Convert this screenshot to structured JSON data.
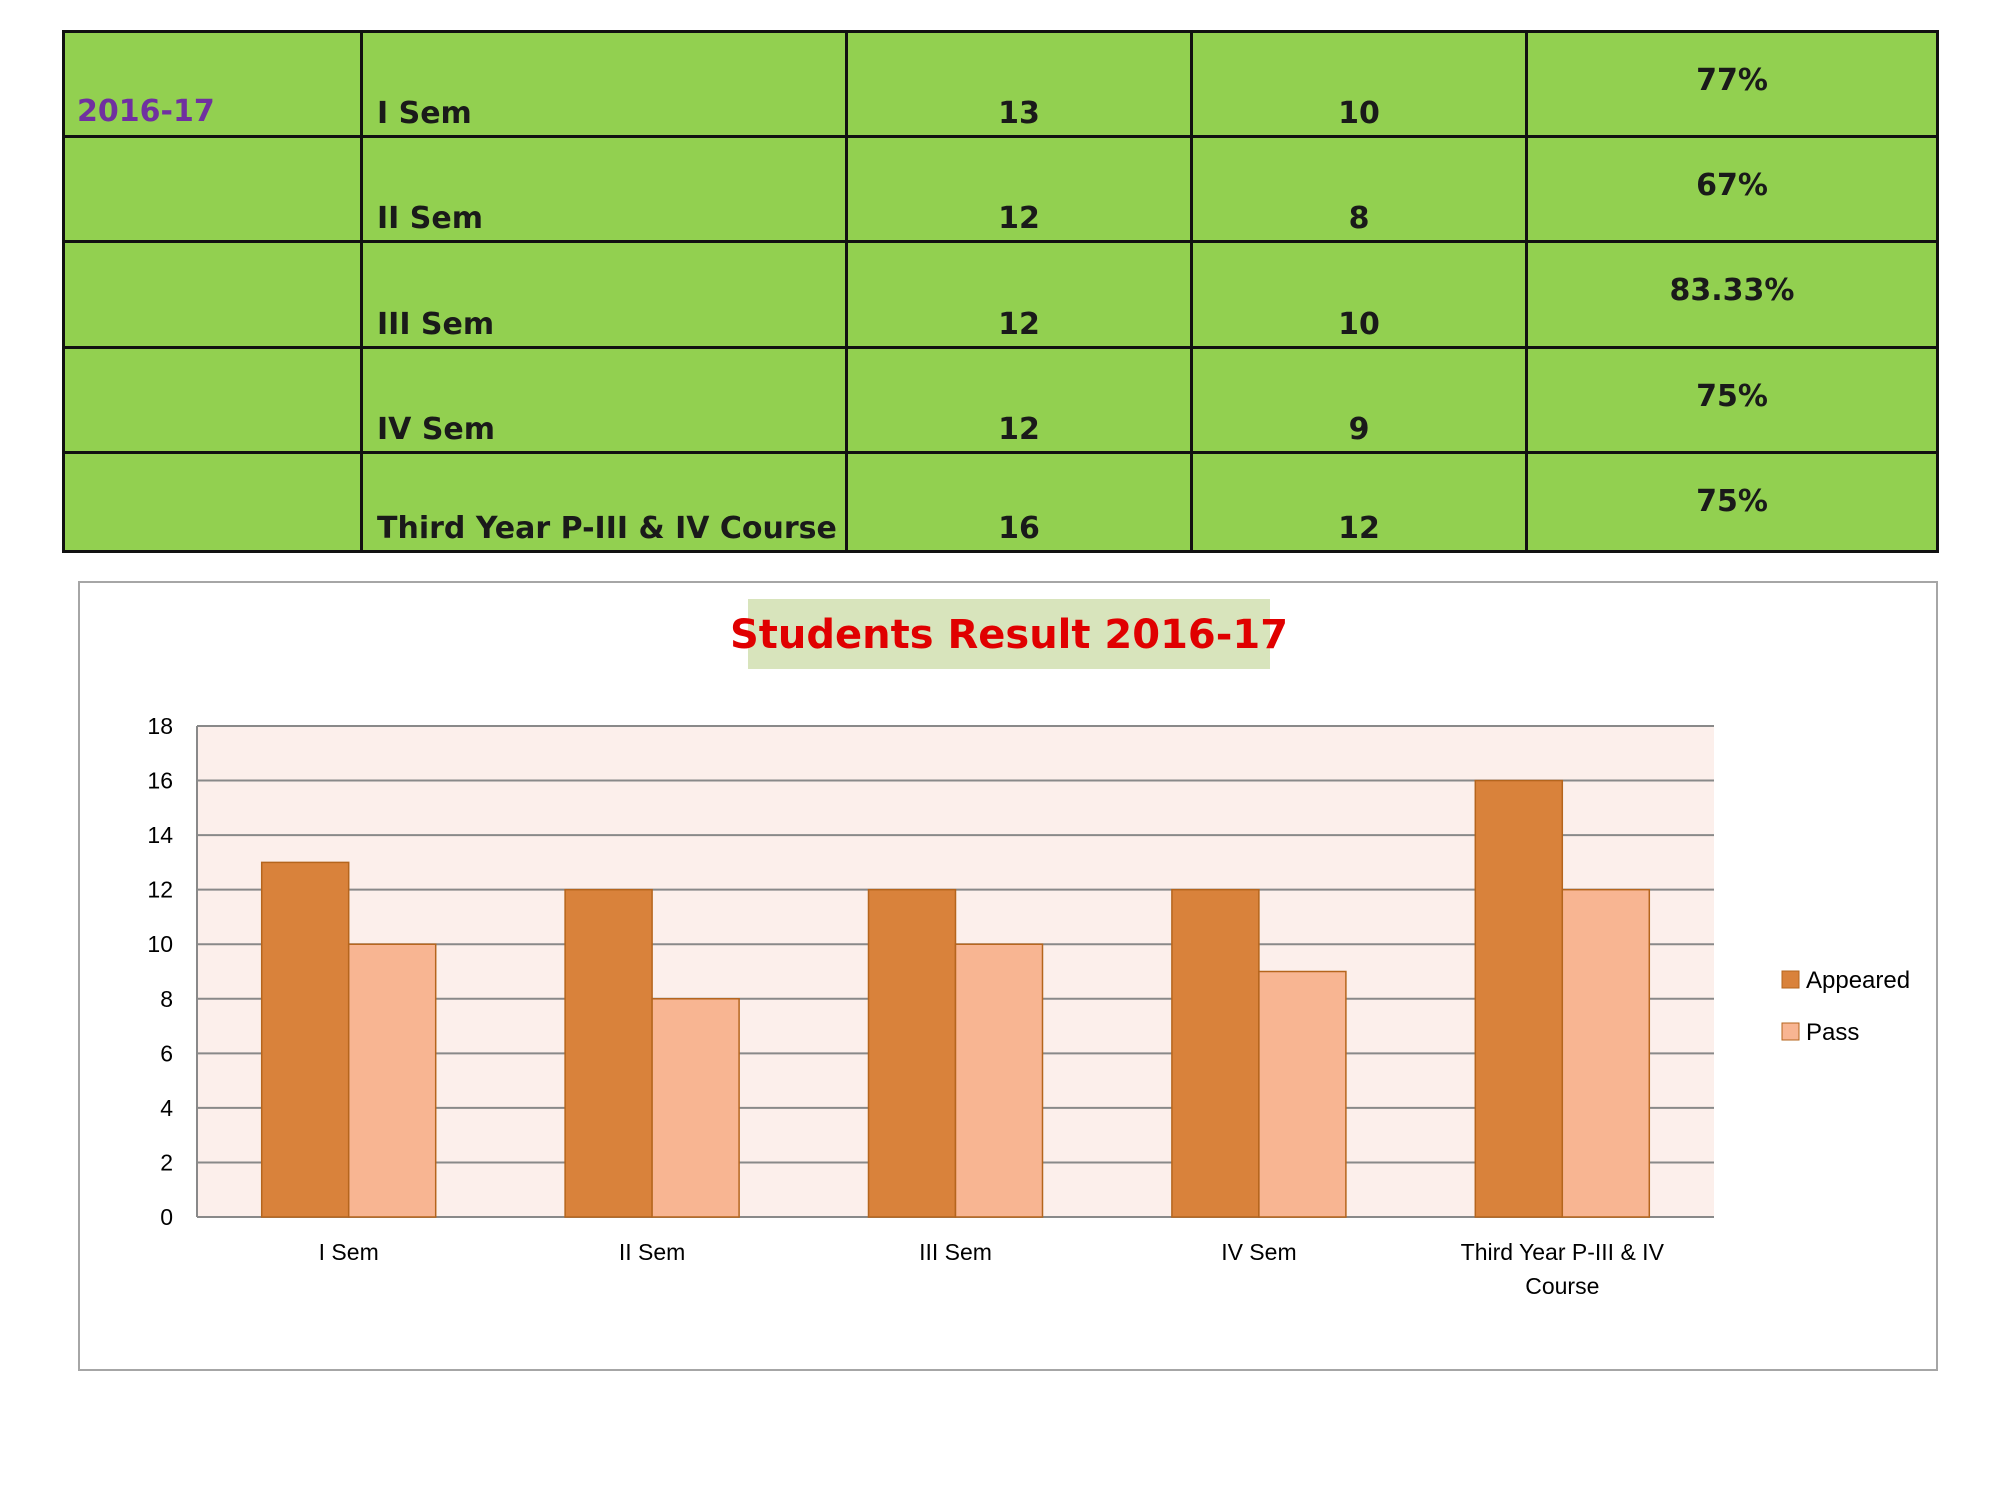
{
  "table": {
    "rows": [
      {
        "year": "2016-17",
        "course": "I Sem",
        "appeared": "13",
        "pass": "10",
        "percent": "77%"
      },
      {
        "year": "",
        "course": "II Sem",
        "appeared": "12",
        "pass": "8",
        "percent": "67%"
      },
      {
        "year": "",
        "course": "III Sem",
        "appeared": "12",
        "pass": "10",
        "percent": "83.33%"
      },
      {
        "year": "",
        "course": "IV Sem",
        "appeared": "12",
        "pass": "9",
        "percent": "75%"
      },
      {
        "year": "",
        "course": "Third Year  P-III & IV Course",
        "appeared": "16",
        "pass": "12",
        "percent": "75%"
      }
    ],
    "colors": {
      "background": "#92d050",
      "year_text": "#7030a0",
      "border": "#111111"
    }
  },
  "chart_data": {
    "type": "bar",
    "title": "Students Result 2016-17",
    "categories": [
      "I Sem",
      "II Sem",
      "III Sem",
      "IV Sem",
      "Third Year  P-III & IV Course"
    ],
    "series": [
      {
        "name": "Appeared",
        "values": [
          13,
          12,
          12,
          12,
          16
        ],
        "color": "#d9823b"
      },
      {
        "name": "Pass",
        "values": [
          10,
          8,
          10,
          9,
          12
        ],
        "color": "#f8b592"
      }
    ],
    "xlabel": "",
    "ylabel": "",
    "ylim": [
      0,
      18
    ],
    "yticks": [
      0,
      2,
      4,
      6,
      8,
      10,
      12,
      14,
      16,
      18
    ],
    "grid": true,
    "legend": "right",
    "colors": {
      "title": "#e00000",
      "title_background": "#d8e4bc",
      "plot_background": "#fcefeb",
      "gridline": "#898989"
    }
  }
}
